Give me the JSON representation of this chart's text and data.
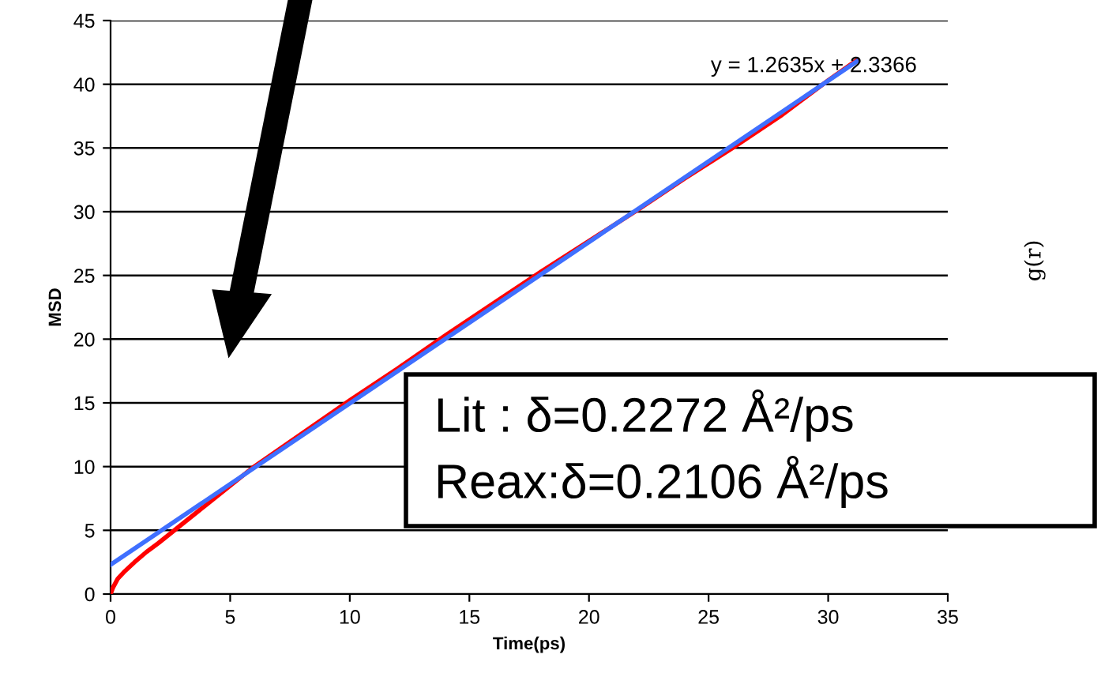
{
  "chart_data": {
    "type": "line",
    "xlabel": "Time(ps)",
    "ylabel": "MSD",
    "xlim": [
      0,
      35
    ],
    "ylim": [
      0,
      45
    ],
    "xticks": [
      0,
      5,
      10,
      15,
      20,
      25,
      30,
      35
    ],
    "yticks": [
      0,
      5,
      10,
      15,
      20,
      25,
      30,
      35,
      40,
      45
    ],
    "grid": "y",
    "legend": false,
    "marker": "none",
    "line_style": "solid",
    "series": [
      {
        "color": "#ff0000",
        "x": [
          0,
          0.1,
          0.3,
          0.6,
          1,
          1.5,
          2,
          3,
          4,
          5,
          6,
          7,
          8,
          10,
          12,
          14,
          16,
          18,
          20,
          22,
          24,
          26,
          28,
          30,
          31.2
        ],
        "values": [
          0,
          0.5,
          1.2,
          1.8,
          2.5,
          3.3,
          4,
          5.5,
          7,
          8.5,
          10,
          11.3,
          12.6,
          15.2,
          17.7,
          20.3,
          22.8,
          25.3,
          27.7,
          30.1,
          32.6,
          35,
          37.5,
          40.3,
          41.9
        ]
      },
      {
        "type": "line",
        "color": "#3f6fff",
        "x": [
          0,
          31.2
        ],
        "values": [
          2.3,
          41.8
        ]
      }
    ],
    "annotations": [
      "y = 1.2635x + 2.3366",
      "Lit : δ=0.2272 Å²/ps",
      "Reax:δ=0.2106 Å²/ps",
      "g(r)"
    ]
  }
}
